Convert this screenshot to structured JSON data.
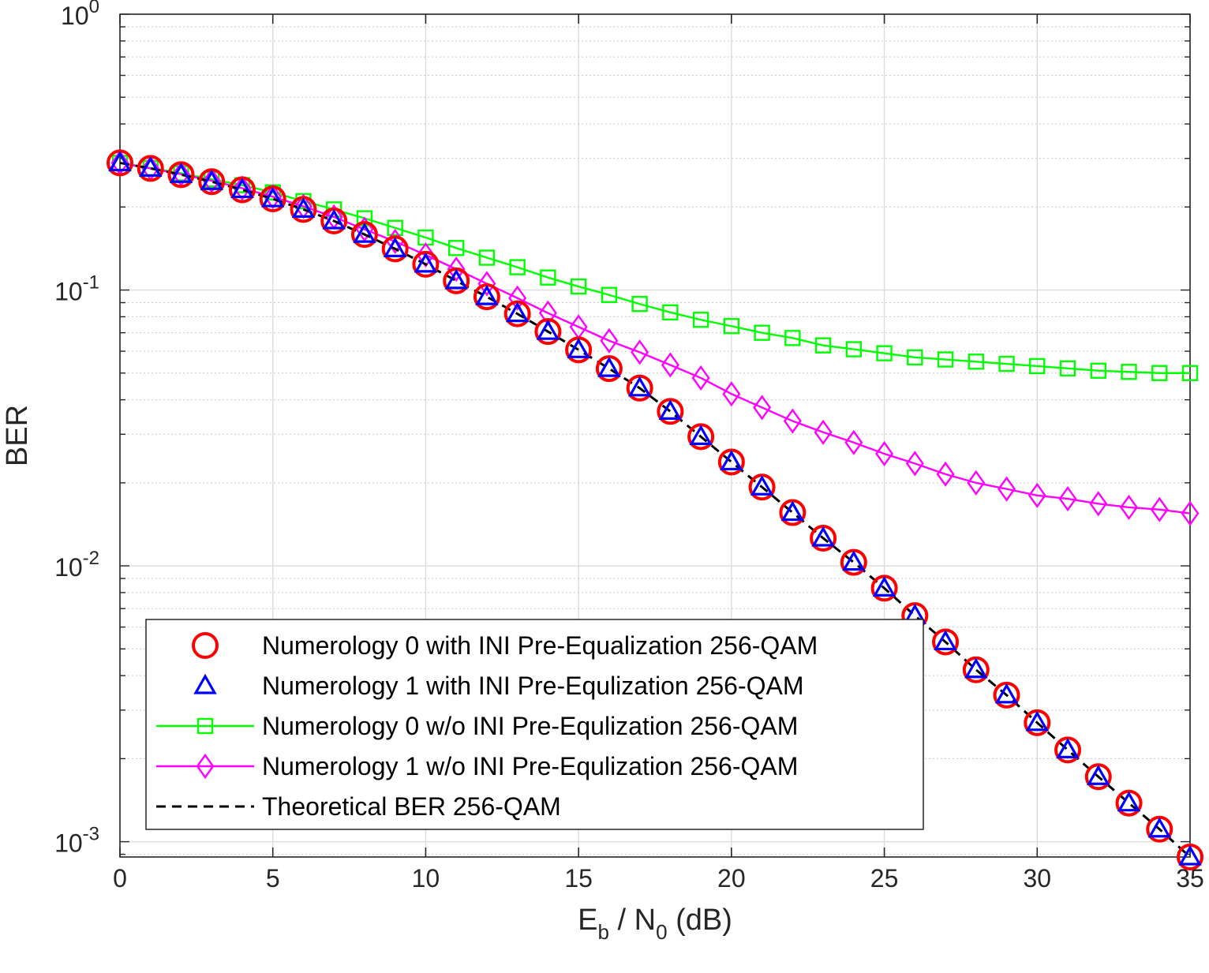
{
  "chart_data": {
    "type": "line",
    "x_scale": "linear",
    "y_scale": "log",
    "xlabel": {
      "main": "E",
      "sub1": "b",
      "mid": " / N",
      "sub2": "0",
      "tail": " (dB)"
    },
    "ylabel": "BER",
    "xlim": [
      0,
      35
    ],
    "ylim": [
      0.00088,
      1
    ],
    "xticks": [
      0,
      5,
      10,
      15,
      20,
      25,
      30,
      35
    ],
    "xtick_labels": [
      "0",
      "5",
      "10",
      "15",
      "20",
      "25",
      "30",
      "35"
    ],
    "yticks": [
      {
        "value": 1,
        "base": "10",
        "exp": "0"
      },
      {
        "value": 0.1,
        "base": "10",
        "exp": "-1"
      },
      {
        "value": 0.01,
        "base": "10",
        "exp": "-2"
      },
      {
        "value": 0.001,
        "base": "10",
        "exp": "-3"
      }
    ],
    "grid": true,
    "legend_position": "bottom-left",
    "x": [
      0,
      1,
      2,
      3,
      4,
      5,
      6,
      7,
      8,
      9,
      10,
      11,
      12,
      13,
      14,
      15,
      16,
      17,
      18,
      19,
      20,
      21,
      22,
      23,
      24,
      25,
      26,
      27,
      28,
      29,
      30,
      31,
      32,
      33,
      34,
      35
    ],
    "series": [
      {
        "name": "Numerology 0 with INI Pre-Equalization 256-QAM",
        "color": "#ff0000",
        "marker": "circle",
        "line": "none",
        "values": [
          0.289,
          0.276,
          0.262,
          0.247,
          0.231,
          0.214,
          0.196,
          0.178,
          0.159,
          0.141,
          0.124,
          0.108,
          0.0945,
          0.082,
          0.0707,
          0.0607,
          0.0519,
          0.0441,
          0.0363,
          0.0294,
          0.0238,
          0.0193,
          0.0156,
          0.0126,
          0.0103,
          0.0083,
          0.0066,
          0.0053,
          0.0042,
          0.0034,
          0.0027,
          0.00215,
          0.00172,
          0.00138,
          0.00111,
          0.00088
        ]
      },
      {
        "name": "Numerology 1 with INI Pre-Equlization 256-QAM",
        "color": "#0000ff",
        "marker": "triangle",
        "line": "none",
        "values": [
          0.289,
          0.276,
          0.262,
          0.247,
          0.231,
          0.214,
          0.196,
          0.178,
          0.159,
          0.141,
          0.124,
          0.108,
          0.0945,
          0.082,
          0.0707,
          0.0607,
          0.0519,
          0.0441,
          0.0363,
          0.0294,
          0.0238,
          0.0193,
          0.0156,
          0.0126,
          0.0103,
          0.0083,
          0.0066,
          0.0053,
          0.0042,
          0.0034,
          0.0027,
          0.00215,
          0.00172,
          0.00138,
          0.00111,
          0.00088
        ]
      },
      {
        "name": "Numerology 0 w/o INI Pre-Equlization 256-QAM",
        "color": "#00ff00",
        "marker": "square",
        "line": "solid",
        "values": [
          0.289,
          0.277,
          0.265,
          0.252,
          0.24,
          0.226,
          0.21,
          0.196,
          0.182,
          0.168,
          0.155,
          0.142,
          0.131,
          0.121,
          0.111,
          0.103,
          0.096,
          0.089,
          0.083,
          0.078,
          0.074,
          0.07,
          0.067,
          0.063,
          0.061,
          0.059,
          0.057,
          0.056,
          0.055,
          0.054,
          0.053,
          0.052,
          0.051,
          0.0505,
          0.05,
          0.05
        ]
      },
      {
        "name": "Numerology 1 w/o INI Pre-Equlization 256-QAM",
        "color": "#ff00ff",
        "marker": "diamond",
        "line": "solid",
        "values": [
          0.289,
          0.276,
          0.263,
          0.249,
          0.234,
          0.218,
          0.201,
          0.184,
          0.166,
          0.15,
          0.134,
          0.119,
          0.1055,
          0.0935,
          0.0825,
          0.0735,
          0.0655,
          0.0595,
          0.0535,
          0.048,
          0.042,
          0.0375,
          0.0335,
          0.0305,
          0.028,
          0.0255,
          0.0235,
          0.0215,
          0.02,
          0.019,
          0.018,
          0.0175,
          0.0168,
          0.0163,
          0.016,
          0.0155
        ]
      },
      {
        "name": "Theoretical BER 256-QAM",
        "color": "#000000",
        "marker": "none",
        "line": "dashed",
        "values": [
          0.289,
          0.276,
          0.262,
          0.247,
          0.231,
          0.214,
          0.196,
          0.178,
          0.159,
          0.141,
          0.124,
          0.108,
          0.0945,
          0.082,
          0.0707,
          0.0607,
          0.0519,
          0.0441,
          0.0363,
          0.0294,
          0.0238,
          0.0193,
          0.0156,
          0.0126,
          0.0103,
          0.0083,
          0.0066,
          0.0053,
          0.0042,
          0.0034,
          0.0027,
          0.00215,
          0.00172,
          0.00138,
          0.00111,
          0.00088
        ]
      }
    ]
  }
}
